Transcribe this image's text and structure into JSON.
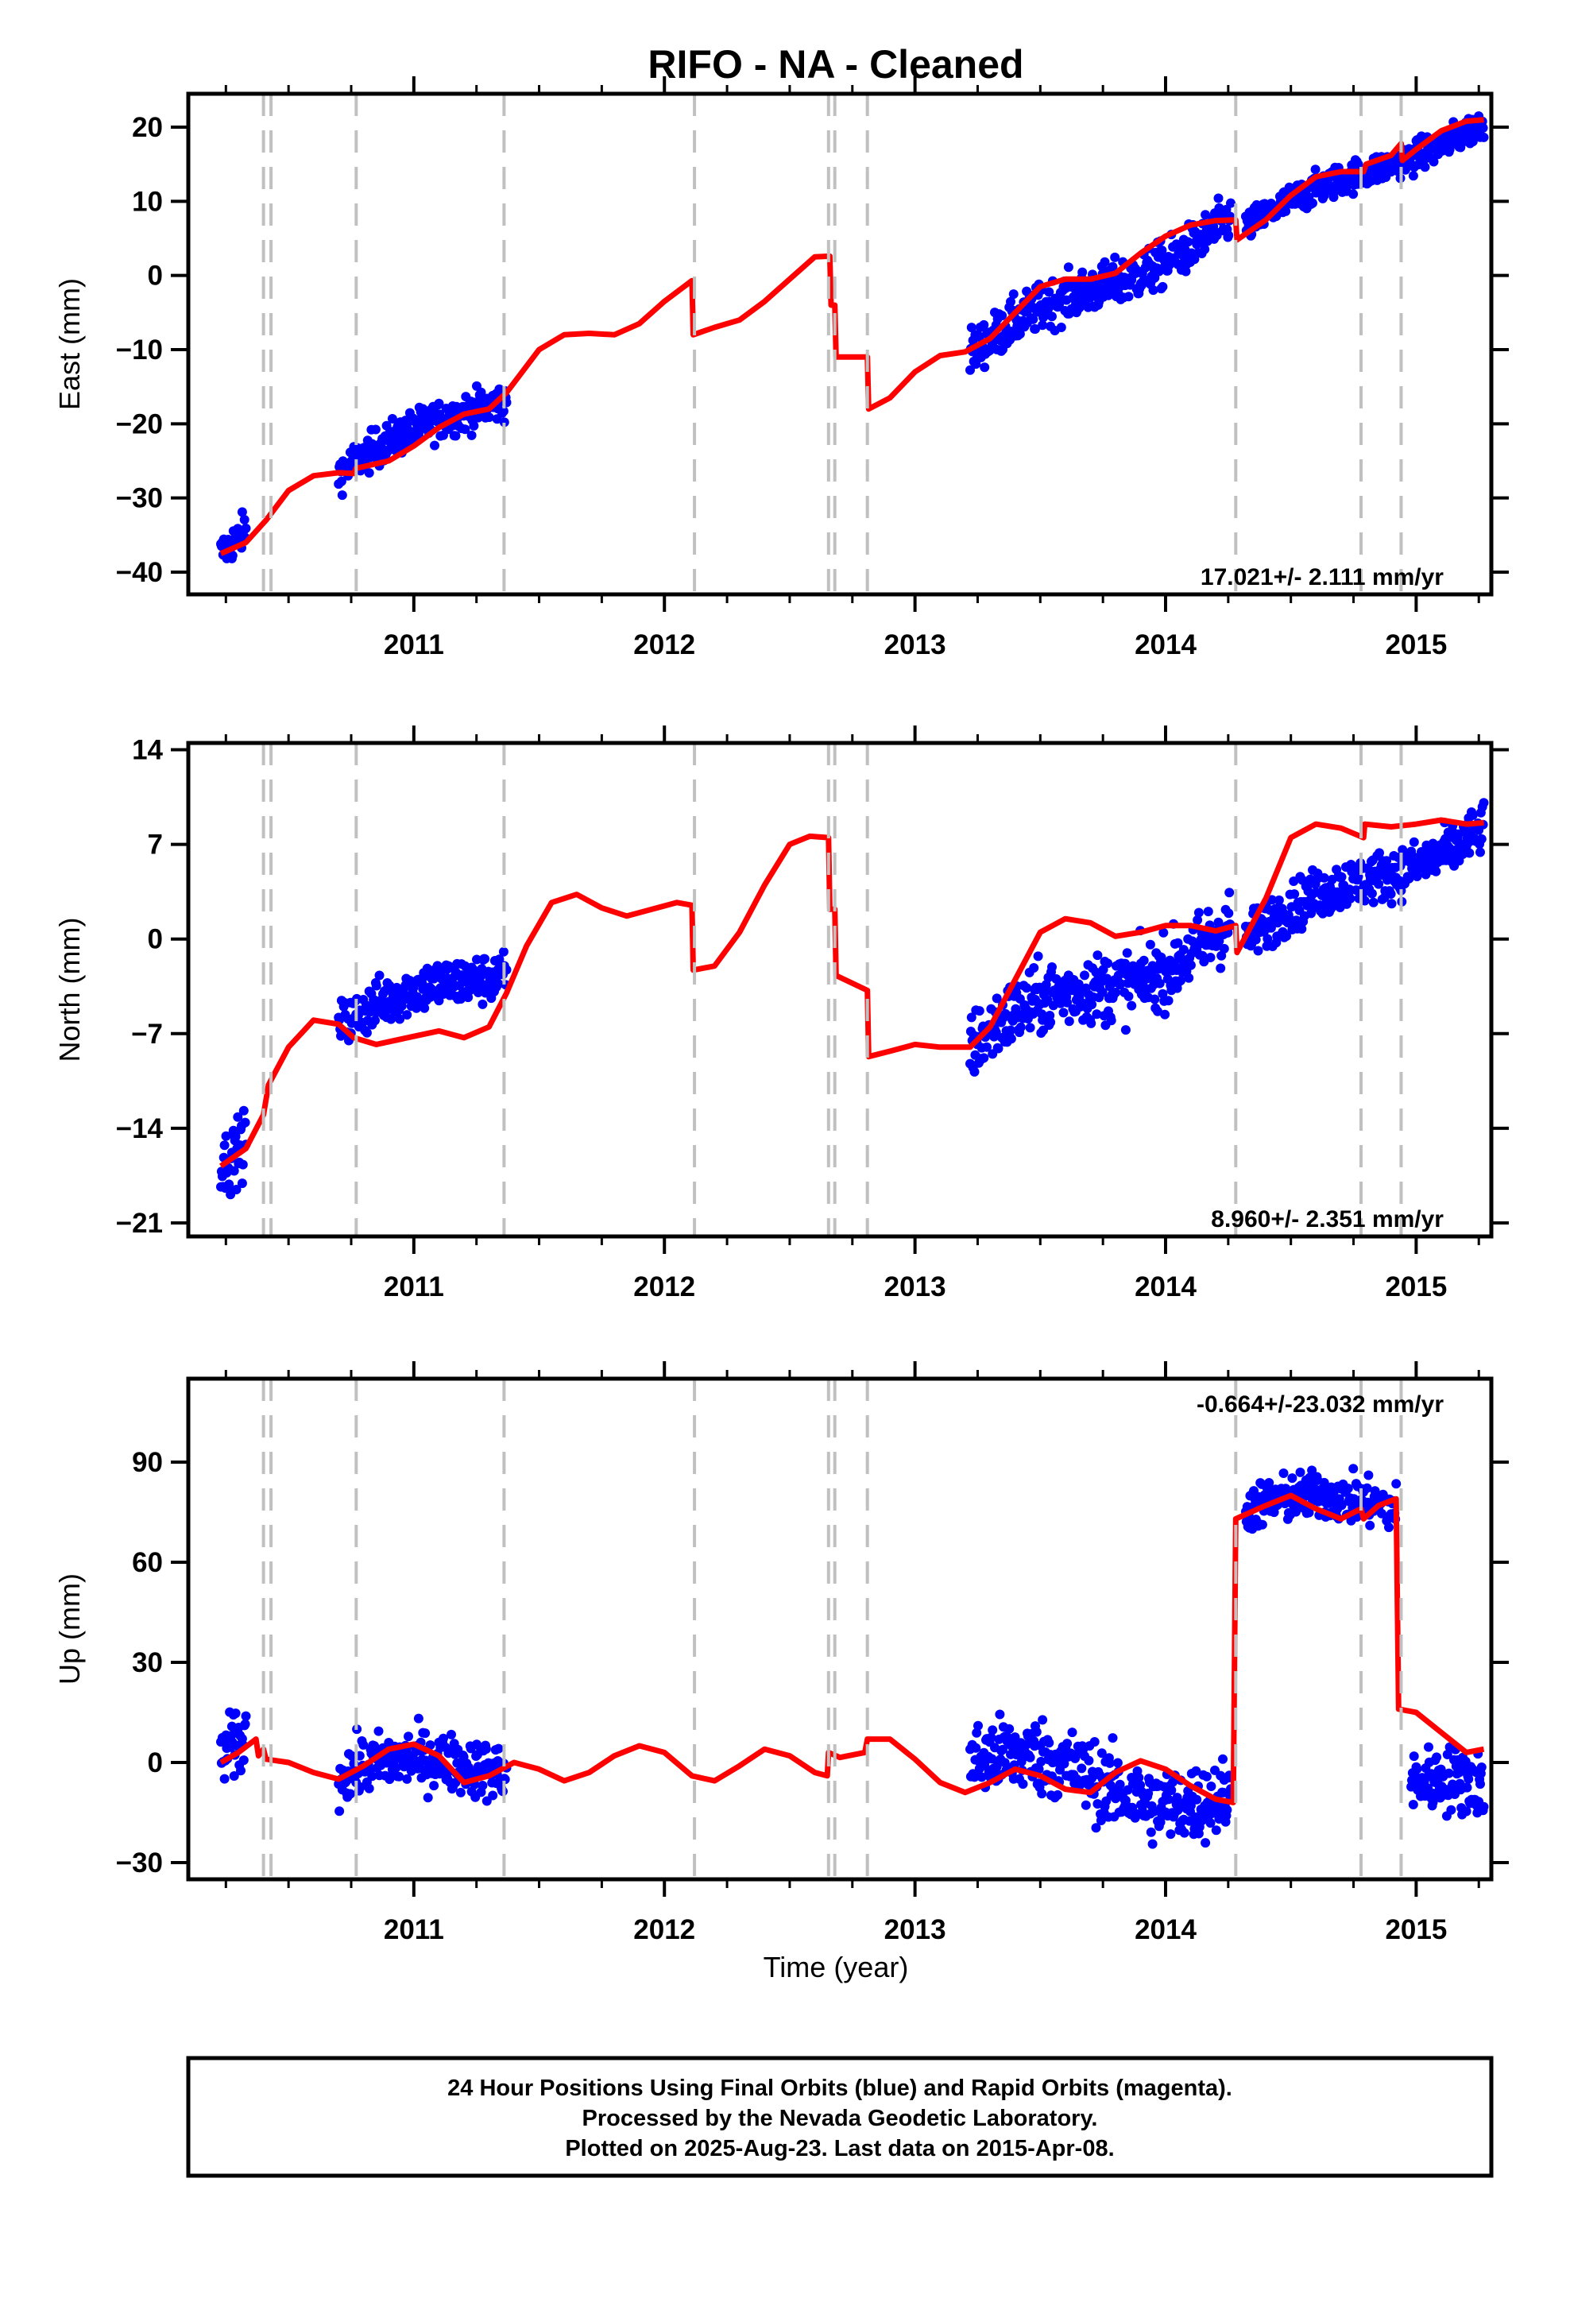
{
  "title": "RIFO  - NA - Cleaned",
  "colors": {
    "data": "#0000ff",
    "model": "#ff0000",
    "steps": "#c0c0c0",
    "frame": "#000000"
  },
  "chart_data": [
    {
      "type": "scatter",
      "component": "east",
      "ylabel": "East (mm)",
      "xlabel": "",
      "xlim": [
        2010.1,
        2015.3
      ],
      "ylim": [
        -43,
        24.5
      ],
      "xticks": [
        2011,
        2012,
        2013,
        2014,
        2015
      ],
      "yticks": [
        20,
        10,
        0,
        -10,
        -20,
        -30,
        -40
      ],
      "rate_label": "17.021+/- 2.111 mm/yr",
      "grid": false,
      "model": [
        [
          2010.23,
          -37.5
        ],
        [
          2010.33,
          -36
        ],
        [
          2010.41,
          -33
        ],
        [
          2010.5,
          -29
        ],
        [
          2010.6,
          -27
        ],
        [
          2010.7,
          -26.6
        ],
        [
          2010.76,
          -26.7
        ],
        [
          2010.77,
          -26
        ],
        [
          2010.9,
          -25
        ],
        [
          2011.0,
          -23
        ],
        [
          2011.1,
          -20.5
        ],
        [
          2011.2,
          -18.7
        ],
        [
          2011.3,
          -18
        ],
        [
          2011.37,
          -15.8
        ],
        [
          2011.5,
          -10
        ],
        [
          2011.6,
          -8
        ],
        [
          2011.7,
          -7.8
        ],
        [
          2011.8,
          -8
        ],
        [
          2011.9,
          -6.5
        ],
        [
          2012.0,
          -3.5
        ],
        [
          2012.11,
          -0.7
        ],
        [
          2012.115,
          -8
        ],
        [
          2012.2,
          -7
        ],
        [
          2012.3,
          -6
        ],
        [
          2012.4,
          -3.5
        ],
        [
          2012.5,
          -0.5
        ],
        [
          2012.6,
          2.5
        ],
        [
          2012.66,
          2.6
        ],
        [
          2012.665,
          -4
        ],
        [
          2012.68,
          -4
        ],
        [
          2012.685,
          -11
        ],
        [
          2012.81,
          -11
        ],
        [
          2012.815,
          -18
        ],
        [
          2012.9,
          -16.5
        ],
        [
          2013.0,
          -13
        ],
        [
          2013.1,
          -10.8
        ],
        [
          2013.2,
          -10.3
        ],
        [
          2013.3,
          -8.5
        ],
        [
          2013.4,
          -5
        ],
        [
          2013.5,
          -1.5
        ],
        [
          2013.6,
          -0.5
        ],
        [
          2013.7,
          -0.5
        ],
        [
          2013.8,
          0.3
        ],
        [
          2013.9,
          3
        ],
        [
          2014.0,
          5.3
        ],
        [
          2014.1,
          6.8
        ],
        [
          2014.2,
          7.4
        ],
        [
          2014.28,
          7.5
        ],
        [
          2014.285,
          4.8
        ],
        [
          2014.4,
          7.5
        ],
        [
          2014.5,
          10.8
        ],
        [
          2014.6,
          13.3
        ],
        [
          2014.7,
          14
        ],
        [
          2014.79,
          14
        ],
        [
          2014.8,
          15
        ],
        [
          2014.9,
          16.2
        ],
        [
          2014.94,
          17.8
        ],
        [
          2014.945,
          15.5
        ],
        [
          2015.0,
          17
        ],
        [
          2015.1,
          19.5
        ],
        [
          2015.2,
          20.8
        ],
        [
          2015.27,
          21
        ]
      ],
      "data_segments": [
        {
          "x": [
            2010.23,
            2010.33
          ],
          "y": [
            [
              -37.5,
              -36.5
            ],
            [
              -36,
              -35
            ]
          ],
          "scatter": 1.8
        },
        {
          "x": [
            2010.7,
            2011.37
          ],
          "y": [
            [
              -26.6,
              -26.7
            ],
            [
              -15.8,
              -15.8
            ]
          ],
          "scatter": 1.8
        },
        {
          "x": [
            2013.22,
            2014.26
          ],
          "y": [
            [
              -10.5,
              -10.5
            ],
            [
              7.5,
              7.5
            ]
          ],
          "scatter": 2.2
        },
        {
          "x": [
            2014.32,
            2015.27
          ],
          "y": [
            [
              6.5,
              6.5
            ],
            [
              21,
              21
            ]
          ],
          "scatter": 1.5
        }
      ]
    },
    {
      "type": "scatter",
      "component": "north",
      "ylabel": "North (mm)",
      "xlabel": "",
      "xlim": [
        2010.1,
        2015.3
      ],
      "ylim": [
        -22,
        14.5
      ],
      "xticks": [
        2011,
        2012,
        2013,
        2014,
        2015
      ],
      "yticks": [
        14,
        7,
        0,
        -7,
        -14,
        -21
      ],
      "ytick_labels": [
        "14",
        "7",
        "0",
        "−7",
        "−14",
        "−21"
      ],
      "rate_label": "8.960+/- 2.351 mm/yr",
      "grid": false,
      "model": [
        [
          2010.23,
          -16.8
        ],
        [
          2010.33,
          -15.5
        ],
        [
          2010.4,
          -13
        ],
        [
          2010.42,
          -10.8
        ],
        [
          2010.5,
          -8
        ],
        [
          2010.6,
          -6
        ],
        [
          2010.7,
          -6.3
        ],
        [
          2010.76,
          -7.3
        ],
        [
          2010.85,
          -7.8
        ],
        [
          2011.0,
          -7.2
        ],
        [
          2011.1,
          -6.8
        ],
        [
          2011.2,
          -7.3
        ],
        [
          2011.3,
          -6.5
        ],
        [
          2011.37,
          -4
        ],
        [
          2011.45,
          -0.5
        ],
        [
          2011.55,
          2.7
        ],
        [
          2011.65,
          3.3
        ],
        [
          2011.75,
          2.3
        ],
        [
          2011.85,
          1.7
        ],
        [
          2011.95,
          2.2
        ],
        [
          2012.05,
          2.7
        ],
        [
          2012.11,
          2.5
        ],
        [
          2012.115,
          -2.3
        ],
        [
          2012.2,
          -2
        ],
        [
          2012.3,
          0.5
        ],
        [
          2012.4,
          4
        ],
        [
          2012.5,
          7
        ],
        [
          2012.58,
          7.6
        ],
        [
          2012.655,
          7.5
        ],
        [
          2012.66,
          2.2
        ],
        [
          2012.68,
          2.2
        ],
        [
          2012.685,
          -2.7
        ],
        [
          2012.81,
          -3.8
        ],
        [
          2012.815,
          -8.7
        ],
        [
          2012.9,
          -8.3
        ],
        [
          2013.0,
          -7.8
        ],
        [
          2013.1,
          -8
        ],
        [
          2013.22,
          -8
        ],
        [
          2013.3,
          -6.5
        ],
        [
          2013.4,
          -3
        ],
        [
          2013.5,
          0.5
        ],
        [
          2013.6,
          1.5
        ],
        [
          2013.7,
          1.2
        ],
        [
          2013.8,
          0.2
        ],
        [
          2013.9,
          0.5
        ],
        [
          2014.0,
          1
        ],
        [
          2014.1,
          1
        ],
        [
          2014.2,
          0.6
        ],
        [
          2014.28,
          1
        ],
        [
          2014.285,
          -1
        ],
        [
          2014.4,
          3
        ],
        [
          2014.5,
          7.5
        ],
        [
          2014.6,
          8.5
        ],
        [
          2014.7,
          8.2
        ],
        [
          2014.79,
          7.5
        ],
        [
          2014.795,
          8.5
        ],
        [
          2014.9,
          8.3
        ],
        [
          2015.0,
          8.5
        ],
        [
          2015.1,
          8.8
        ],
        [
          2015.2,
          8.5
        ],
        [
          2015.27,
          8.6
        ]
      ],
      "data_segments": [
        {
          "x": [
            2010.23,
            2010.33
          ],
          "y": [
            [
              -17,
              -16.5
            ],
            [
              -15.5,
              -15.5
            ]
          ],
          "scatter": 1.6
        },
        {
          "x": [
            2010.7,
            2011.37
          ],
          "y": [
            [
              -6.5,
              -7.5
            ],
            [
              -4,
              -2
            ]
          ],
          "scatter": 1.3
        },
        {
          "x": [
            2013.22,
            2014.26
          ],
          "y": [
            [
              -8,
              -8
            ],
            [
              1,
              1
            ]
          ],
          "scatter": 1.8
        },
        {
          "x": [
            2014.32,
            2015.27
          ],
          "y": [
            [
              0,
              0
            ],
            [
              8.5,
              8.5
            ]
          ],
          "scatter": 1.3
        }
      ]
    },
    {
      "type": "scatter",
      "component": "up",
      "ylabel": "Up (mm)",
      "xlabel": "Time (year)",
      "xlim": [
        2010.1,
        2015.3
      ],
      "ylim": [
        -35,
        115
      ],
      "xticks": [
        2011,
        2012,
        2013,
        2014,
        2015
      ],
      "yticks": [
        90,
        60,
        30,
        0,
        -30
      ],
      "rate_label": "-0.664+/-23.032 mm/yr",
      "grid": false,
      "model": [
        [
          2010.23,
          0
        ],
        [
          2010.3,
          3
        ],
        [
          2010.37,
          7
        ],
        [
          2010.38,
          2
        ],
        [
          2010.4,
          4
        ],
        [
          2010.41,
          1
        ],
        [
          2010.5,
          0
        ],
        [
          2010.6,
          -3
        ],
        [
          2010.7,
          -5
        ],
        [
          2010.8,
          -1
        ],
        [
          2010.9,
          4
        ],
        [
          2011.0,
          5.5
        ],
        [
          2011.1,
          2
        ],
        [
          2011.2,
          -6
        ],
        [
          2011.3,
          -4
        ],
        [
          2011.4,
          0
        ],
        [
          2011.5,
          -2
        ],
        [
          2011.6,
          -5.5
        ],
        [
          2011.7,
          -3
        ],
        [
          2011.8,
          2
        ],
        [
          2011.9,
          5
        ],
        [
          2012.0,
          3
        ],
        [
          2012.11,
          -4
        ],
        [
          2012.2,
          -5.5
        ],
        [
          2012.3,
          -1
        ],
        [
          2012.4,
          4
        ],
        [
          2012.5,
          2
        ],
        [
          2012.6,
          -3
        ],
        [
          2012.65,
          -4
        ],
        [
          2012.655,
          3
        ],
        [
          2012.7,
          1.5
        ],
        [
          2012.8,
          3
        ],
        [
          2012.81,
          7
        ],
        [
          2012.9,
          7
        ],
        [
          2013.0,
          1
        ],
        [
          2013.1,
          -6
        ],
        [
          2013.2,
          -9
        ],
        [
          2013.3,
          -6
        ],
        [
          2013.4,
          -2
        ],
        [
          2013.5,
          -4
        ],
        [
          2013.6,
          -8
        ],
        [
          2013.7,
          -9
        ],
        [
          2013.8,
          -3
        ],
        [
          2013.9,
          0.5
        ],
        [
          2014.0,
          -2
        ],
        [
          2014.1,
          -7
        ],
        [
          2014.2,
          -11
        ],
        [
          2014.27,
          -12
        ],
        [
          2014.28,
          73
        ],
        [
          2014.4,
          77
        ],
        [
          2014.5,
          80
        ],
        [
          2014.6,
          76
        ],
        [
          2014.7,
          73
        ],
        [
          2014.78,
          76
        ],
        [
          2014.79,
          73
        ],
        [
          2014.85,
          77
        ],
        [
          2014.92,
          79
        ],
        [
          2014.93,
          16
        ],
        [
          2015.0,
          15
        ],
        [
          2015.1,
          9
        ],
        [
          2015.2,
          3
        ],
        [
          2015.27,
          4
        ]
      ],
      "data_segments": [
        {
          "x": [
            2010.23,
            2010.33
          ],
          "y": [
            [
              3,
              2
            ],
            [
              3,
              4
            ]
          ],
          "scatter": 7
        },
        {
          "x": [
            2010.7,
            2011.37
          ],
          "y": [
            [
              -4,
              -4
            ],
            [
              0,
              0
            ]
          ],
          "scatter": 6
        },
        {
          "x": [
            2013.22,
            2014.26
          ],
          "y": [
            [
              0,
              -5
            ],
            [
              -10,
              -11
            ]
          ],
          "scatter": 8
        },
        {
          "x": [
            2014.32,
            2014.92
          ],
          "y": [
            [
              76,
              78
            ],
            [
              78,
              78
            ]
          ],
          "scatter": 5
        },
        {
          "x": [
            2014.98,
            2015.27
          ],
          "y": [
            [
              -6,
              -6
            ],
            [
              -11,
              -11
            ]
          ],
          "scatter": 7
        }
      ]
    }
  ],
  "step_lines": [
    2010.4,
    2010.43,
    2010.77,
    2011.36,
    2012.12,
    2012.655,
    2012.68,
    2012.81,
    2014.28,
    2014.78,
    2014.94
  ],
  "footer": {
    "line1": "24 Hour Positions Using Final Orbits (blue) and Rapid Orbits (magenta).",
    "line2": "Processed by the Nevada Geodetic Laboratory.",
    "line3": "Plotted on 2025-Aug-23. Last data on 2015-Apr-08."
  }
}
